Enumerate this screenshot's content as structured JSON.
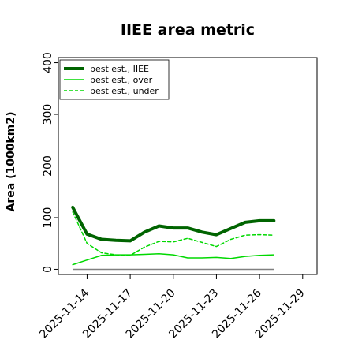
{
  "chart_data": {
    "type": "line",
    "title": "IIEE area metric",
    "xlabel": "",
    "ylabel": "Area (1000km2)",
    "x": [
      "2025-11-13",
      "2025-11-14",
      "2025-11-15",
      "2025-11-16",
      "2025-11-17",
      "2025-11-18",
      "2025-11-19",
      "2025-11-20",
      "2025-11-21",
      "2025-11-22",
      "2025-11-23",
      "2025-11-24",
      "2025-11-25",
      "2025-11-26",
      "2025-11-27"
    ],
    "xticks": [
      "2025-11-14",
      "2025-11-17",
      "2025-11-20",
      "2025-11-23",
      "2025-11-26",
      "2025-11-29"
    ],
    "xlim": [
      "2025-11-12",
      "2025-11-30"
    ],
    "yticks": [
      0,
      100,
      200,
      300,
      400
    ],
    "ylim": [
      -10,
      410
    ],
    "grid": false,
    "legend_position": "top-left",
    "series": [
      {
        "name": "best est., IIEE",
        "color": "#006400",
        "style": "solid",
        "width": 4,
        "values": [
          120,
          68,
          58,
          56,
          55,
          72,
          84,
          80,
          80,
          72,
          67,
          79,
          91,
          94,
          94
        ]
      },
      {
        "name": "best est., over",
        "color": "#00d800",
        "style": "solid",
        "width": 1.5,
        "values": [
          9,
          18,
          27,
          28,
          28,
          29,
          30,
          28,
          22,
          22,
          23,
          21,
          25,
          27,
          28
        ]
      },
      {
        "name": "best est., under",
        "color": "#00d800",
        "style": "dashed",
        "width": 1.5,
        "values": [
          111,
          50,
          32,
          28,
          27,
          43,
          54,
          53,
          60,
          52,
          44,
          58,
          66,
          67,
          66
        ]
      }
    ],
    "baseline": {
      "value": 0,
      "color": "#808080"
    }
  }
}
